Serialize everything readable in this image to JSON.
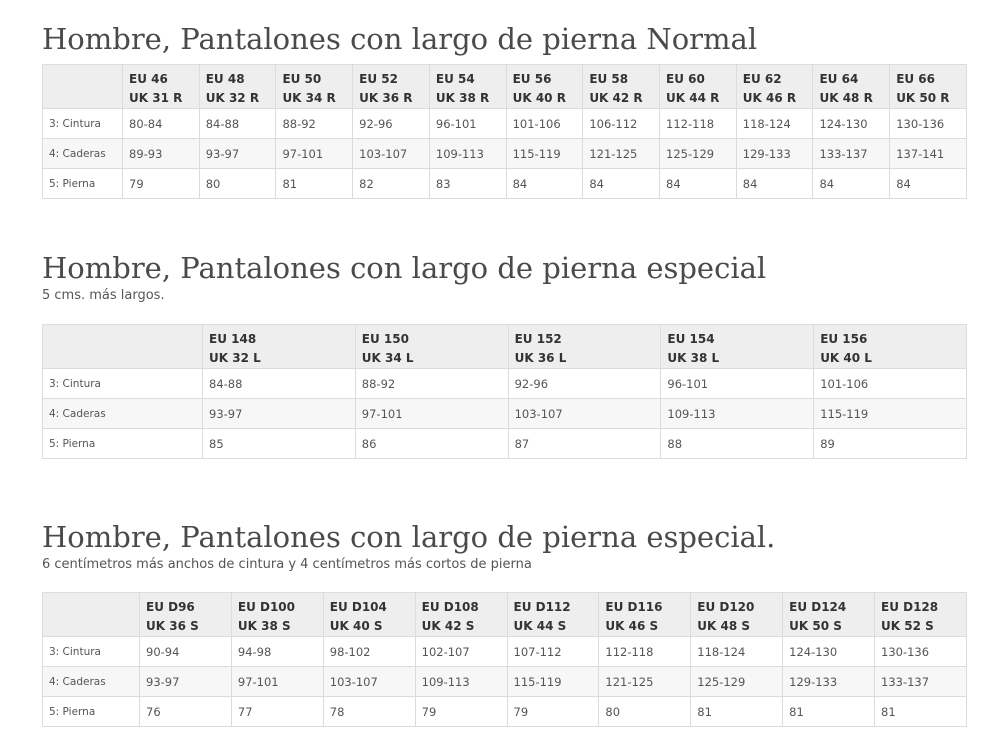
{
  "sections": [
    {
      "title": "Hombre, Pantalones con largo de pierna Normal",
      "subtitle": "",
      "headers": [
        [
          "EU 46",
          "UK 31 R"
        ],
        [
          "EU 48",
          "UK 32 R"
        ],
        [
          "EU 50",
          "UK 34 R"
        ],
        [
          "EU 52",
          "UK 36 R"
        ],
        [
          "EU 54",
          "UK 38 R"
        ],
        [
          "EU 56",
          "UK 40 R"
        ],
        [
          "EU 58",
          "UK 42 R"
        ],
        [
          "EU 60",
          "UK 44 R"
        ],
        [
          "EU 62",
          "UK 46 R"
        ],
        [
          "EU 64",
          "UK 48 R"
        ],
        [
          "EU 66",
          "UK 50 R"
        ]
      ],
      "rows": [
        {
          "label": "3: Cintura",
          "values": [
            "80-84",
            "84-88",
            "88-92",
            "92-96",
            "96-101",
            "101-106",
            "106-112",
            "112-118",
            "118-124",
            "124-130",
            "130-136"
          ]
        },
        {
          "label": "4: Caderas",
          "values": [
            "89-93",
            "93-97",
            "97-101",
            "103-107",
            "109-113",
            "115-119",
            "121-125",
            "125-129",
            "129-133",
            "133-137",
            "137-141"
          ]
        },
        {
          "label": "5: Pierna",
          "values": [
            "79",
            "80",
            "81",
            "82",
            "83",
            "84",
            "84",
            "84",
            "84",
            "84",
            "84"
          ]
        }
      ]
    },
    {
      "title": "Hombre, Pantalones con largo de pierna especial",
      "subtitle": "5 cms. más largos.",
      "headers": [
        [
          "EU 148",
          "UK 32 L"
        ],
        [
          "EU 150",
          "UK 34 L"
        ],
        [
          "EU 152",
          "UK 36 L"
        ],
        [
          "EU 154",
          "UK 38 L"
        ],
        [
          "EU 156",
          "UK 40 L"
        ]
      ],
      "rows": [
        {
          "label": "3: Cintura",
          "values": [
            "84-88",
            "88-92",
            "92-96",
            "96-101",
            "101-106"
          ]
        },
        {
          "label": "4: Caderas",
          "values": [
            "93-97",
            "97-101",
            "103-107",
            "109-113",
            "115-119"
          ]
        },
        {
          "label": "5: Pierna",
          "values": [
            "85",
            "86",
            "87",
            "88",
            "89"
          ]
        }
      ]
    },
    {
      "title": "Hombre, Pantalones con largo de pierna especial.",
      "subtitle": "6 centímetros más anchos de cintura y 4 centímetros más cortos de pierna",
      "headers": [
        [
          "EU D96",
          "UK 36 S"
        ],
        [
          "EU D100",
          "UK 38 S"
        ],
        [
          "EU D104",
          "UK 40 S"
        ],
        [
          "EU D108",
          "UK 42 S"
        ],
        [
          "EU D112",
          "UK 44 S"
        ],
        [
          "EU D116",
          "UK 46 S"
        ],
        [
          "EU D120",
          "UK 48 S"
        ],
        [
          "EU D124",
          "UK 50 S"
        ],
        [
          "EU D128",
          "UK 52 S"
        ]
      ],
      "rows": [
        {
          "label": "3: Cintura",
          "values": [
            "90-94",
            "94-98",
            "98-102",
            "102-107",
            "107-112",
            "112-118",
            "118-124",
            "124-130",
            "130-136"
          ]
        },
        {
          "label": "4: Caderas",
          "values": [
            "93-97",
            "97-101",
            "103-107",
            "109-113",
            "115-119",
            "121-125",
            "125-129",
            "129-133",
            "133-137"
          ]
        },
        {
          "label": "5: Pierna",
          "values": [
            "76",
            "77",
            "78",
            "79",
            "79",
            "80",
            "81",
            "81",
            "81"
          ]
        }
      ]
    }
  ],
  "colors": {
    "header_bg": "#eeeeee",
    "zebra_bg": "#f7f7f7",
    "border": "#dcdcdc",
    "title": "#4a4a4a"
  }
}
